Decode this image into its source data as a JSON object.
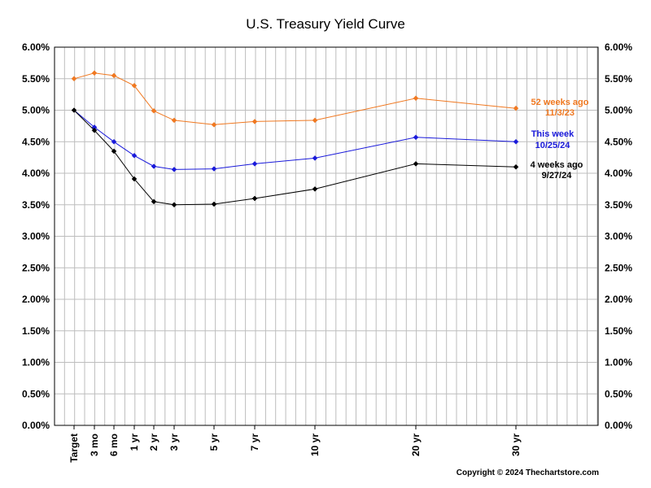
{
  "chart_data": {
    "type": "line",
    "title": "U.S. Treasury Yield Curve",
    "copyright": "Copyright © 2024 Thechartstore.com",
    "categories": [
      "Target",
      "3 mo",
      "6 mo",
      "1 yr",
      "2 yr",
      "3 yr",
      "5 yr",
      "7 yr",
      "10 yr",
      "20 yr",
      "30 yr"
    ],
    "ylim": [
      0,
      6
    ],
    "y_tick_labels": [
      "0.00%",
      "0.50%",
      "1.00%",
      "1.50%",
      "2.00%",
      "2.50%",
      "3.00%",
      "3.50%",
      "4.00%",
      "4.50%",
      "5.00%",
      "5.50%",
      "6.00%"
    ],
    "grid": true,
    "legend_position": "right (inline labels at series ends)",
    "series": [
      {
        "label_line1": "52 weeks ago",
        "label_line2": "11/3/23",
        "color": "#f07820",
        "values": [
          5.5,
          5.59,
          5.55,
          5.39,
          4.99,
          4.84,
          4.77,
          4.82,
          4.84,
          5.19,
          5.03
        ]
      },
      {
        "label_line1": "This week",
        "label_line2": "10/25/24",
        "color": "#1a1adb",
        "values": [
          5.0,
          4.73,
          4.5,
          4.28,
          4.11,
          4.06,
          4.07,
          4.15,
          4.24,
          4.57,
          4.5
        ]
      },
      {
        "label_line1": "4 weeks ago",
        "label_line2": "9/27/24",
        "color": "#000000",
        "values": [
          5.0,
          4.68,
          4.35,
          3.91,
          3.55,
          3.5,
          3.51,
          3.6,
          3.75,
          4.15,
          4.1
        ]
      }
    ]
  }
}
